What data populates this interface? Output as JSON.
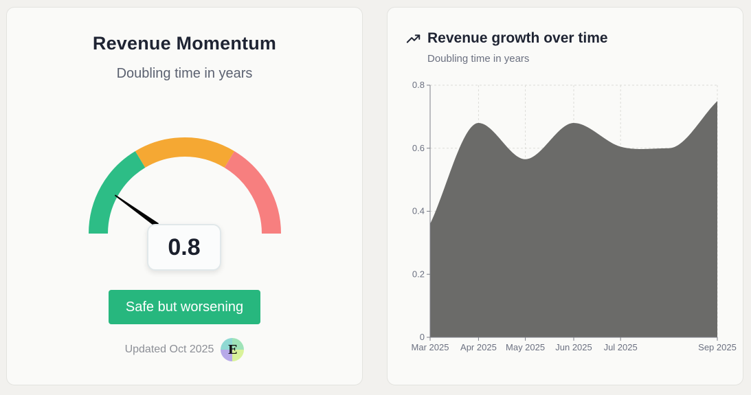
{
  "gauge_card": {
    "title": "Revenue Momentum",
    "subtitle": "Doubling time in years",
    "value": 0.8,
    "value_label": "0.8",
    "gauge_max": 5,
    "segment_colors": [
      "#2dbd86",
      "#f5a833",
      "#f77f7f"
    ],
    "status": "Safe but worsening",
    "status_color": "#27b77e",
    "updated": "Updated Oct 2025",
    "avatar_letter": "E"
  },
  "chart_card": {
    "icon": "trending-up-icon",
    "title": "Revenue growth over time",
    "subtitle": "Doubling time in years"
  },
  "chart_data": {
    "type": "area",
    "title": "Revenue growth over time",
    "subtitle": "Doubling time in years",
    "x": [
      "2025-03-01",
      "2025-04-01",
      "2025-05-01",
      "2025-06-01",
      "2025-07-01",
      "2025-08-01",
      "2025-09-01"
    ],
    "x_tick_labels": [
      "Mar 2025",
      "Apr 2025",
      "May 2025",
      "Jun 2025",
      "Jul 2025",
      "Sep 2025"
    ],
    "x_tick_dates": [
      "2025-03-01",
      "2025-04-01",
      "2025-05-01",
      "2025-06-01",
      "2025-07-01",
      "2025-09-01"
    ],
    "series": [
      {
        "values": [
          0.36,
          0.68,
          0.565,
          0.68,
          0.605,
          0.6,
          0.75
        ],
        "color": "#6b6b69"
      }
    ],
    "ylim": [
      0,
      0.8
    ],
    "y_ticks": [
      0,
      0.2,
      0.4,
      0.6,
      0.8
    ],
    "y_tick_labels": [
      "0",
      "0.2",
      "0.4",
      "0.6",
      "0.8"
    ],
    "grid": true
  }
}
